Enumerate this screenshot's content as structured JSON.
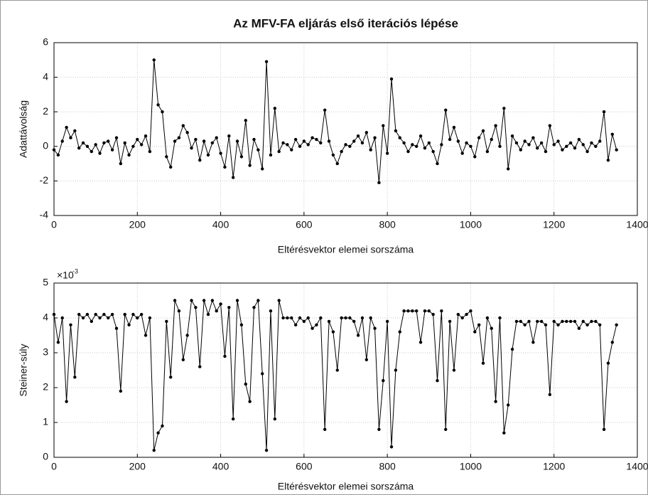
{
  "chart_data": [
    {
      "type": "line",
      "title": "Az MFV-FA eljárás első iterációs lépése",
      "xlabel": "Eltérésvektor elemei sorszáma",
      "ylabel": "Adattávolság",
      "xlim": [
        0,
        1400
      ],
      "xticks": [
        0,
        200,
        400,
        600,
        800,
        1000,
        1200,
        1400
      ],
      "ylim": [
        -4,
        6
      ],
      "yticks": [
        -4,
        -2,
        0,
        2,
        4,
        6
      ],
      "grid": true,
      "x": [
        0,
        10,
        20,
        30,
        40,
        50,
        60,
        70,
        80,
        90,
        100,
        110,
        120,
        130,
        140,
        150,
        160,
        170,
        180,
        190,
        200,
        210,
        220,
        230,
        240,
        250,
        260,
        270,
        280,
        290,
        300,
        310,
        320,
        330,
        340,
        350,
        360,
        370,
        380,
        390,
        400,
        410,
        420,
        430,
        440,
        450,
        460,
        470,
        480,
        490,
        500,
        510,
        520,
        530,
        540,
        550,
        560,
        570,
        580,
        590,
        600,
        610,
        620,
        630,
        640,
        650,
        660,
        670,
        680,
        690,
        700,
        710,
        720,
        730,
        740,
        750,
        760,
        770,
        780,
        790,
        800,
        810,
        820,
        830,
        840,
        850,
        860,
        870,
        880,
        890,
        900,
        910,
        920,
        930,
        940,
        950,
        960,
        970,
        980,
        990,
        1000,
        1010,
        1020,
        1030,
        1040,
        1050,
        1060,
        1070,
        1080,
        1090,
        1100,
        1110,
        1120,
        1130,
        1140,
        1150,
        1160,
        1170,
        1180,
        1190,
        1200,
        1210,
        1220,
        1230,
        1240,
        1250,
        1260,
        1270,
        1280,
        1290,
        1300,
        1310,
        1320,
        1330,
        1340,
        1350
      ],
      "series": [
        {
          "color": "#000000",
          "values": [
            -0.2,
            -0.5,
            0.3,
            1.1,
            0.5,
            0.9,
            -0.1,
            0.2,
            0.0,
            -0.3,
            0.1,
            -0.4,
            0.2,
            0.3,
            -0.2,
            0.5,
            -1.0,
            0.2,
            -0.5,
            0.0,
            0.4,
            0.1,
            0.6,
            -0.3,
            5.0,
            2.4,
            2.0,
            -0.6,
            -1.2,
            0.3,
            0.5,
            1.2,
            0.8,
            -0.1,
            0.4,
            -0.8,
            0.3,
            -0.5,
            0.2,
            0.5,
            -0.4,
            -1.2,
            0.6,
            -1.8,
            0.3,
            -0.6,
            1.5,
            -1.1,
            0.4,
            -0.2,
            -1.3,
            4.9,
            -0.5,
            2.2,
            -0.3,
            0.2,
            0.1,
            -0.2,
            0.4,
            0.0,
            0.3,
            0.1,
            0.5,
            0.4,
            0.2,
            2.1,
            0.3,
            -0.5,
            -1.0,
            -0.3,
            0.1,
            0.0,
            0.3,
            0.6,
            0.2,
            0.8,
            -0.2,
            0.5,
            -2.1,
            1.2,
            -0.4,
            3.9,
            0.9,
            0.5,
            0.2,
            -0.3,
            0.1,
            0.0,
            0.6,
            -0.1,
            0.2,
            -0.3,
            -1.0,
            0.1,
            2.1,
            0.4,
            1.1,
            0.3,
            -0.4,
            0.2,
            0.0,
            -0.6,
            0.5,
            0.9,
            -0.3,
            0.4,
            1.2,
            0.0,
            2.2,
            -1.3,
            0.6,
            0.2,
            -0.2,
            0.3,
            0.1,
            0.5,
            -0.1,
            0.2,
            -0.3,
            1.2,
            0.1,
            0.3,
            -0.2,
            0.0,
            0.2,
            -0.1,
            0.4,
            0.1,
            -0.3,
            0.2,
            0.0,
            0.3,
            2.0,
            -0.8,
            0.7,
            -0.2
          ]
        }
      ]
    },
    {
      "type": "line",
      "xlabel": "Eltérésvektor elemei sorszáma",
      "ylabel": "Steiner-súly",
      "y_scale_label": "×10",
      "y_scale_exponent": "-3",
      "xlim": [
        0,
        1400
      ],
      "xticks": [
        0,
        200,
        400,
        600,
        800,
        1000,
        1200,
        1400
      ],
      "ylim": [
        0,
        5
      ],
      "yticks": [
        0,
        1,
        2,
        3,
        4,
        5
      ],
      "grid": true,
      "x": [
        0,
        10,
        20,
        30,
        40,
        50,
        60,
        70,
        80,
        90,
        100,
        110,
        120,
        130,
        140,
        150,
        160,
        170,
        180,
        190,
        200,
        210,
        220,
        230,
        240,
        250,
        260,
        270,
        280,
        290,
        300,
        310,
        320,
        330,
        340,
        350,
        360,
        370,
        380,
        390,
        400,
        410,
        420,
        430,
        440,
        450,
        460,
        470,
        480,
        490,
        500,
        510,
        520,
        530,
        540,
        550,
        560,
        570,
        580,
        590,
        600,
        610,
        620,
        630,
        640,
        650,
        660,
        670,
        680,
        690,
        700,
        710,
        720,
        730,
        740,
        750,
        760,
        770,
        780,
        790,
        800,
        810,
        820,
        830,
        840,
        850,
        860,
        870,
        880,
        890,
        900,
        910,
        920,
        930,
        940,
        950,
        960,
        970,
        980,
        990,
        1000,
        1010,
        1020,
        1030,
        1040,
        1050,
        1060,
        1070,
        1080,
        1090,
        1100,
        1110,
        1120,
        1130,
        1140,
        1150,
        1160,
        1170,
        1180,
        1190,
        1200,
        1210,
        1220,
        1230,
        1240,
        1250,
        1260,
        1270,
        1280,
        1290,
        1300,
        1310,
        1320,
        1330,
        1340,
        1350
      ],
      "series": [
        {
          "color": "#000000",
          "values": [
            4.1,
            3.3,
            4.0,
            1.6,
            3.8,
            2.3,
            4.1,
            4.0,
            4.1,
            3.9,
            4.1,
            4.0,
            4.1,
            4.0,
            4.1,
            3.7,
            1.9,
            4.1,
            3.8,
            4.1,
            4.0,
            4.1,
            3.5,
            4.0,
            0.2,
            0.7,
            0.9,
            3.9,
            2.3,
            4.5,
            4.2,
            2.8,
            3.5,
            4.5,
            4.3,
            2.6,
            4.5,
            4.1,
            4.5,
            4.2,
            4.4,
            2.9,
            4.3,
            1.1,
            4.5,
            3.8,
            2.1,
            1.6,
            4.3,
            4.5,
            2.4,
            0.2,
            4.2,
            1.1,
            4.5,
            4.0,
            4.0,
            4.0,
            3.8,
            4.0,
            3.9,
            4.0,
            3.7,
            3.8,
            4.0,
            0.8,
            3.9,
            3.6,
            2.5,
            4.0,
            4.0,
            4.0,
            3.9,
            3.5,
            4.0,
            2.8,
            4.0,
            3.7,
            0.8,
            2.2,
            3.9,
            0.3,
            2.5,
            3.6,
            4.2,
            4.2,
            4.2,
            4.2,
            3.3,
            4.2,
            4.2,
            4.1,
            2.2,
            4.2,
            0.8,
            3.9,
            2.5,
            4.1,
            4.0,
            4.1,
            4.2,
            3.6,
            3.8,
            2.7,
            4.0,
            3.7,
            1.6,
            4.0,
            0.7,
            1.5,
            3.1,
            3.9,
            3.9,
            3.8,
            3.9,
            3.3,
            3.9,
            3.9,
            3.8,
            1.8,
            3.9,
            3.8,
            3.9,
            3.9,
            3.9,
            3.9,
            3.7,
            3.9,
            3.8,
            3.9,
            3.9,
            3.8,
            0.8,
            2.7,
            3.3,
            3.8
          ]
        }
      ]
    }
  ]
}
